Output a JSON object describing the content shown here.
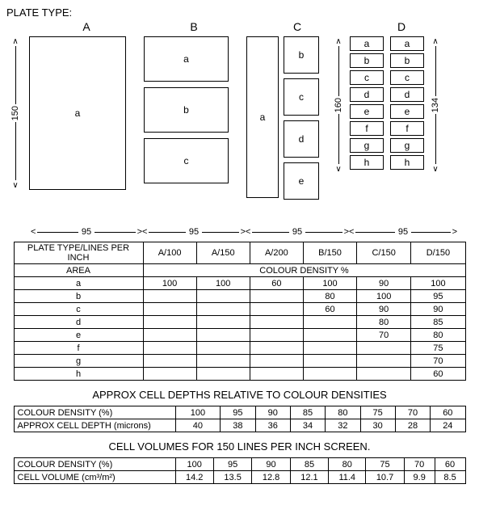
{
  "header": "PLATE TYPE:",
  "col_labels": [
    "A",
    "B",
    "C",
    "D"
  ],
  "dims": {
    "left_height": "150",
    "d_height_left": "160",
    "d_height_right": "134",
    "widths": [
      "95",
      "95",
      "95",
      "95"
    ]
  },
  "plateA": {
    "cells": [
      "a"
    ]
  },
  "plateB": {
    "cells": [
      "a",
      "b",
      "c"
    ]
  },
  "plateC": {
    "left": "a",
    "right": [
      "b",
      "c",
      "d",
      "e"
    ]
  },
  "plateD": {
    "col1": [
      "a",
      "b",
      "c",
      "d",
      "e",
      "f",
      "g",
      "h"
    ],
    "col2": [
      "a",
      "b",
      "c",
      "d",
      "e",
      "f",
      "g",
      "h"
    ]
  },
  "table1": {
    "header_row": [
      "PLATE TYPE/LINES PER INCH",
      "A/100",
      "A/150",
      "A/200",
      "B/150",
      "C/150",
      "D/150"
    ],
    "area_label": "AREA",
    "density_label": "COLOUR DENSITY %",
    "rows": [
      {
        "area": "a",
        "v": [
          "100",
          "100",
          "60",
          "100",
          "90",
          "100"
        ]
      },
      {
        "area": "b",
        "v": [
          "",
          "",
          "",
          "80",
          "100",
          "95"
        ]
      },
      {
        "area": "c",
        "v": [
          "",
          "",
          "",
          "60",
          "90",
          "90"
        ]
      },
      {
        "area": "d",
        "v": [
          "",
          "",
          "",
          "",
          "80",
          "85"
        ]
      },
      {
        "area": "e",
        "v": [
          "",
          "",
          "",
          "",
          "70",
          "80"
        ]
      },
      {
        "area": "f",
        "v": [
          "",
          "",
          "",
          "",
          "",
          "75"
        ]
      },
      {
        "area": "g",
        "v": [
          "",
          "",
          "",
          "",
          "",
          "70"
        ]
      },
      {
        "area": "h",
        "v": [
          "",
          "",
          "",
          "",
          "",
          "60"
        ]
      }
    ]
  },
  "title2": "APPROX CELL DEPTHS RELATIVE TO COLOUR DENSITIES",
  "table2": {
    "rows": [
      {
        "label": "COLOUR DENSITY (%)",
        "v": [
          "100",
          "95",
          "90",
          "85",
          "80",
          "75",
          "70",
          "60"
        ]
      },
      {
        "label": "APPROX CELL DEPTH (microns)",
        "v": [
          "40",
          "38",
          "36",
          "34",
          "32",
          "30",
          "28",
          "24"
        ]
      }
    ]
  },
  "title3": "CELL VOLUMES FOR 150 LINES PER INCH SCREEN.",
  "table3": {
    "rows": [
      {
        "label": "COLOUR DENSITY  (%)",
        "v": [
          "100",
          "95",
          "90",
          "85",
          "80",
          "75",
          "70",
          "60"
        ]
      },
      {
        "label": "CELL VOLUME (cm³/m²)",
        "v": [
          "14.2",
          "13.5",
          "12.8",
          "12.1",
          "11.4",
          "10.7",
          "9.9",
          "8.5"
        ]
      }
    ]
  },
  "style": {
    "plate_border": "#000000",
    "bg": "#ffffff",
    "text": "#000000",
    "plateA_w": 120,
    "plateA_h": 190,
    "plateB_w": 105,
    "plateB_cell_h": 56,
    "plateB_gap": 7,
    "plateC_left_w": 40,
    "plateC_left_h": 200,
    "plateC_right_w": 44,
    "plateC_right_h": 46,
    "plateC_gap": 6,
    "plateD_cell_w": 42,
    "plateD_cell_h": 18,
    "plateD_gap": 3,
    "plateD_colgap": 8
  }
}
